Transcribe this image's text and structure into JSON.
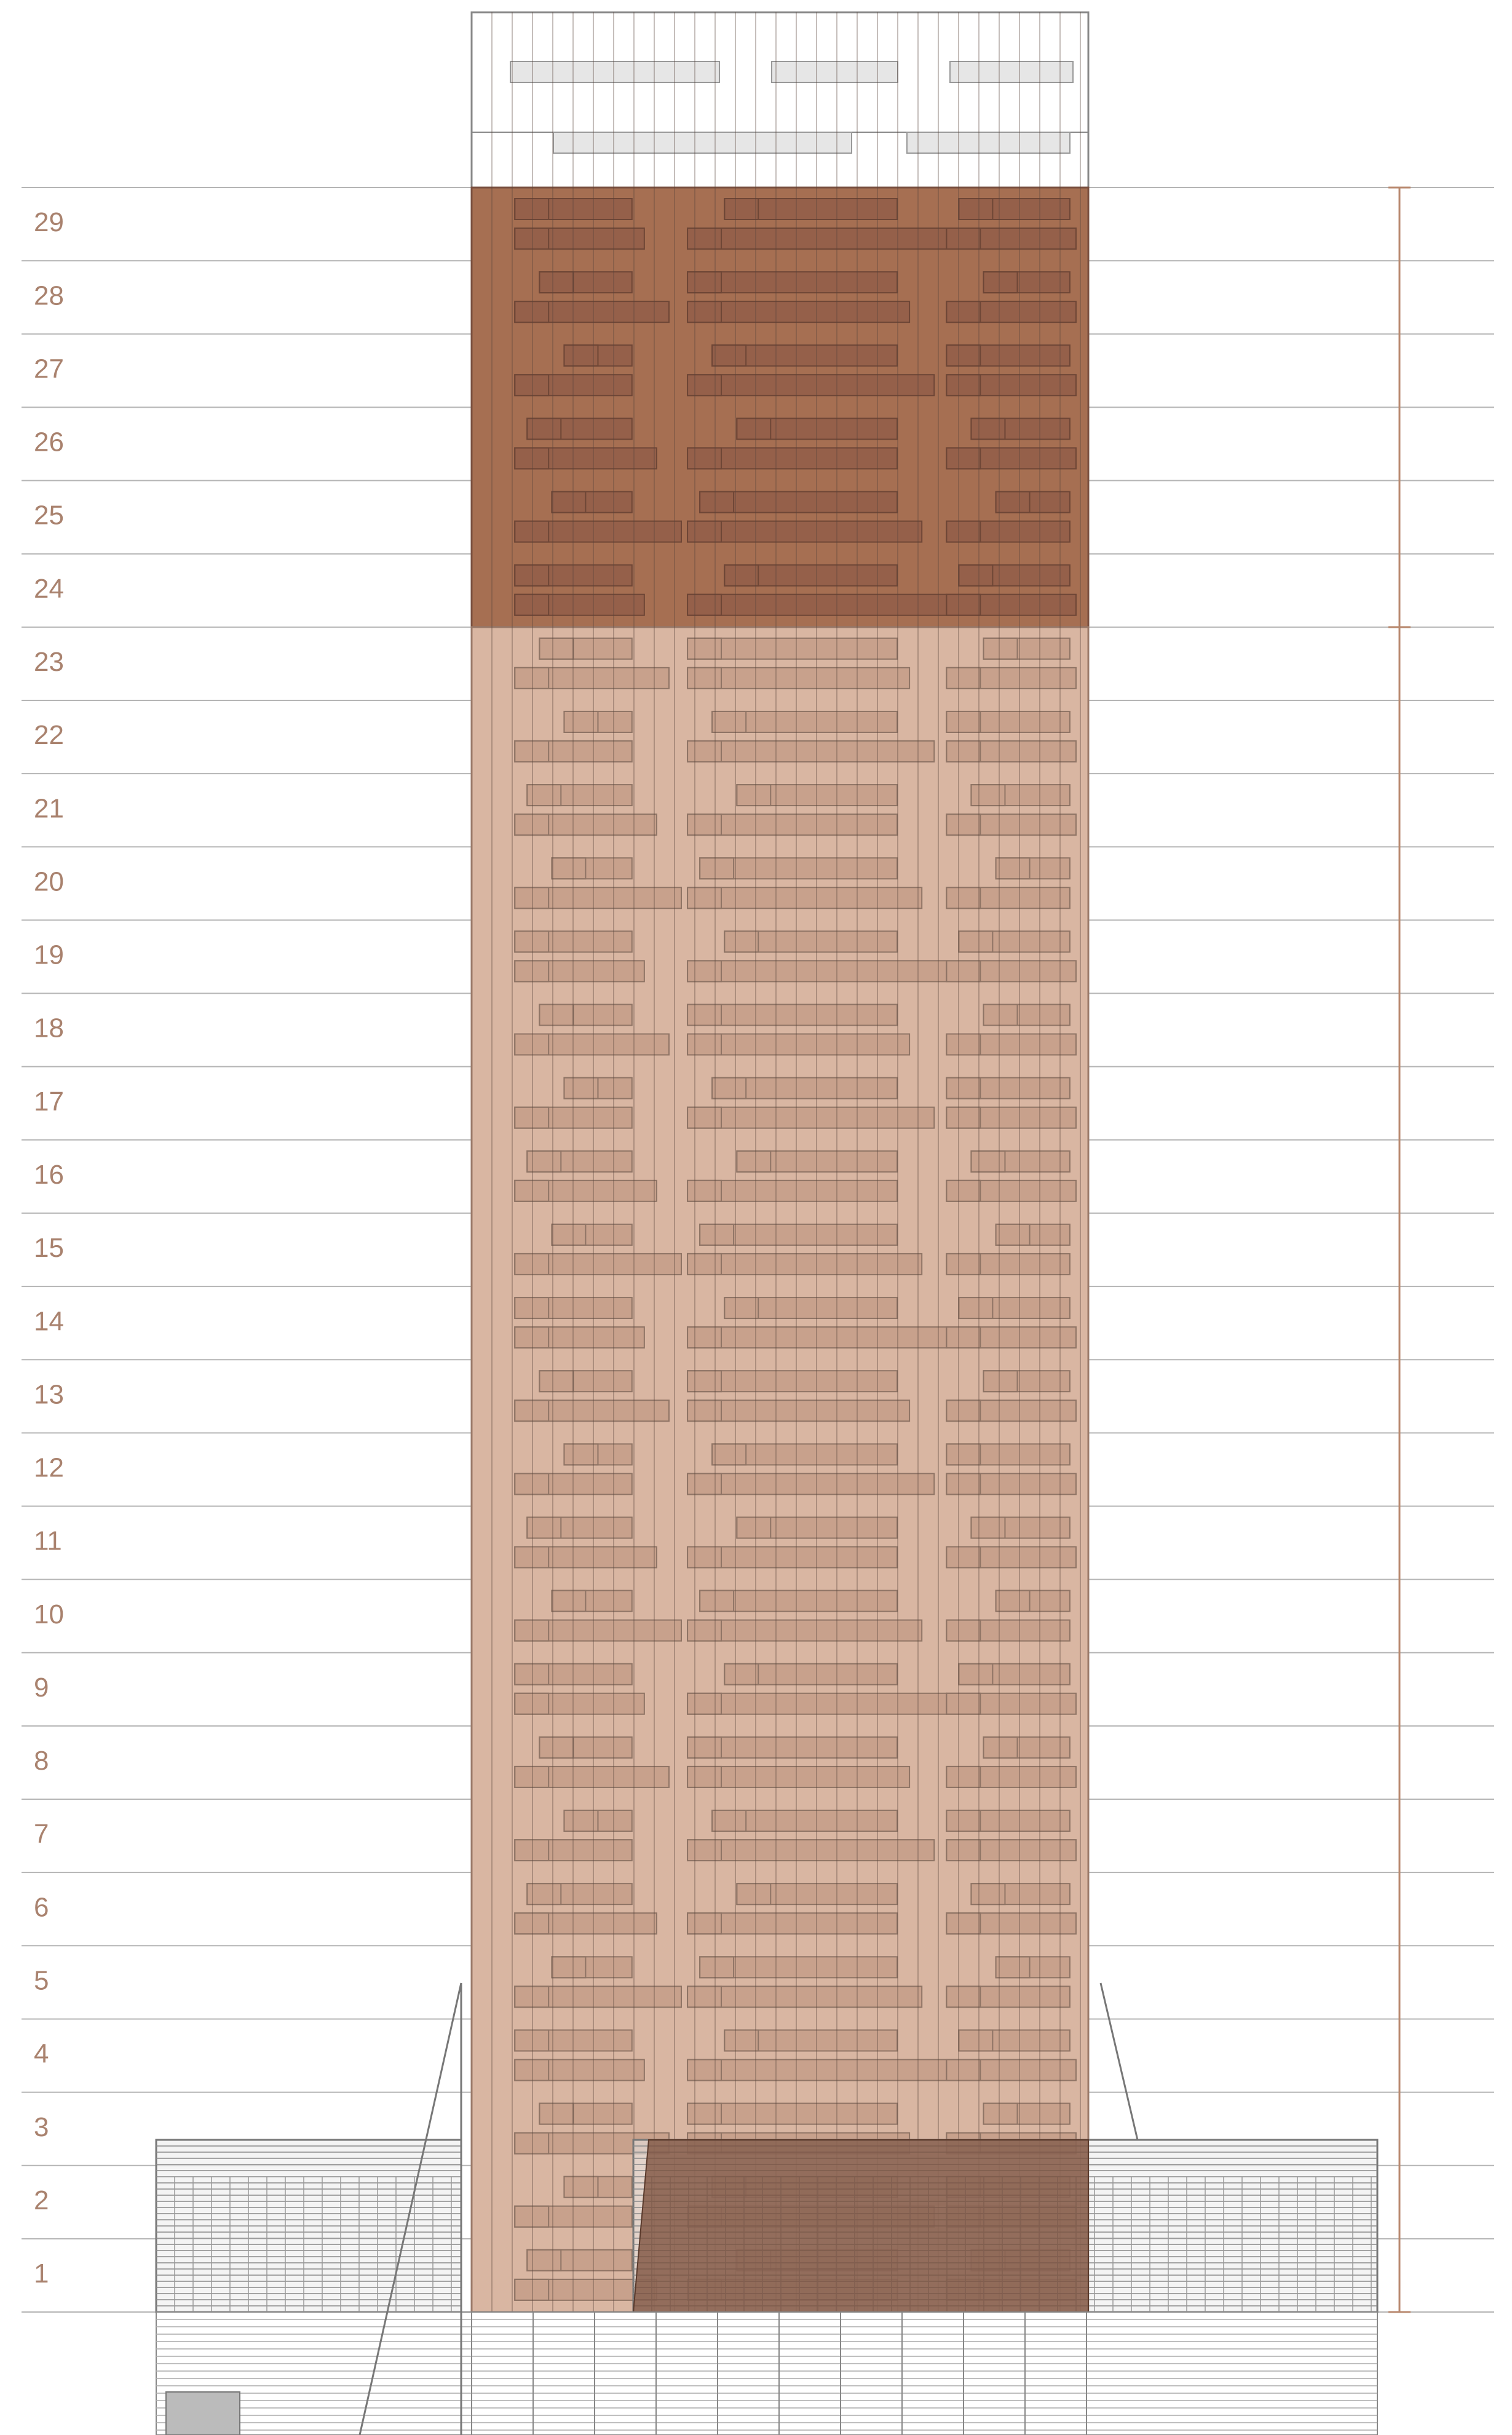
{
  "floors": [
    "29",
    "28",
    "27",
    "26",
    "25",
    "24",
    "23",
    "22",
    "21",
    "20",
    "19",
    "18",
    "17",
    "16",
    "15",
    "14",
    "13",
    "12",
    "11",
    "10",
    "9",
    "8",
    "7",
    "6",
    "5",
    "4",
    "3",
    "2",
    "1"
  ]
}
